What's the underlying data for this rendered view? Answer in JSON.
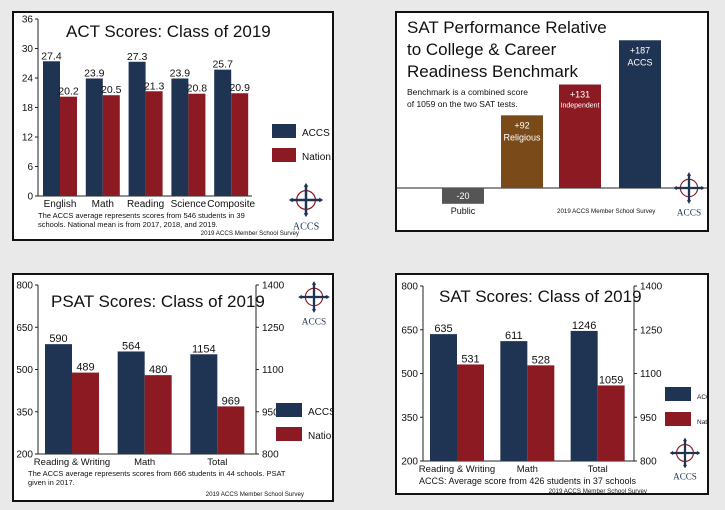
{
  "colors": {
    "accs": "#1f3352",
    "nation": "#8c1a22",
    "religious": "#7a4a19",
    "public": "#555555"
  },
  "chart_data": [
    {
      "id": "act",
      "type": "bar",
      "title": "ACT Scores: Class of 2019",
      "categories": [
        "English",
        "Math",
        "Reading",
        "Science",
        "Composite"
      ],
      "series": [
        {
          "name": "ACCS",
          "values": [
            27.4,
            23.9,
            27.3,
            23.9,
            25.7
          ],
          "labels": [
            "27.4",
            "23.9",
            "27.3",
            "23.9",
            "25.7"
          ]
        },
        {
          "name": "Nation",
          "values": [
            20.2,
            20.5,
            21.3,
            20.8,
            20.9
          ],
          "labels": [
            "20.2",
            "20.5",
            "21.3",
            "20.8",
            "20.9"
          ]
        }
      ],
      "ylim": [
        0,
        36
      ],
      "yticks": [
        "0",
        "6",
        "12",
        "18",
        "24",
        "30",
        "36"
      ],
      "note": "The ACCS average represents scores from 546 students in 39 schools. National mean is from 2017, 2018, and 2019.",
      "source": "2019 ACCS Member School Survey",
      "legend": "right"
    },
    {
      "id": "sat_benchmark",
      "type": "bar",
      "title_lines": [
        "SAT Performance Relative",
        "to College & Career",
        "Readiness Benchmark"
      ],
      "note_lines": [
        "Benchmark is a combined score",
        "of 1059 on the two SAT tests."
      ],
      "categories": [
        "Public",
        "Religious",
        "Independent",
        "ACCS"
      ],
      "values": [
        -20,
        92,
        131,
        187
      ],
      "value_labels": [
        "-20",
        "+92",
        "+131",
        "+187"
      ],
      "ylim": [
        -40,
        195
      ],
      "source": "2019 ACCS Member School Survey"
    },
    {
      "id": "psat",
      "type": "bar",
      "title": "PSAT Scores: Class of 2019",
      "categories": [
        "Reading & Writing",
        "Math",
        "Total"
      ],
      "series": [
        {
          "name": "ACCS",
          "values": [
            590,
            564,
            1154
          ],
          "labels": [
            "590",
            "564",
            "1154"
          ]
        },
        {
          "name": "Nation",
          "values": [
            489,
            480,
            969
          ],
          "labels": [
            "489",
            "480",
            "969"
          ]
        }
      ],
      "ylim_left": [
        200,
        800
      ],
      "yticks_left": [
        "200",
        "350",
        "500",
        "650",
        "800"
      ],
      "ylim_right": [
        800,
        1400
      ],
      "yticks_right": [
        "800",
        "950",
        "1100",
        "1250",
        "1400"
      ],
      "note": "The ACCS average represents scores from 666 students in 44 schools. PSAT given in 2017.",
      "source": "2019 ACCS Member School Survey",
      "legend": "right"
    },
    {
      "id": "sat",
      "type": "bar",
      "title": "SAT Scores: Class of 2019",
      "categories": [
        "Reading & Writing",
        "Math",
        "Total"
      ],
      "series": [
        {
          "name": "ACCS",
          "values": [
            635,
            611,
            1246
          ],
          "labels": [
            "635",
            "611",
            "1246"
          ]
        },
        {
          "name": "Nation",
          "values": [
            531,
            528,
            1059
          ],
          "labels": [
            "531",
            "528",
            "1059"
          ]
        }
      ],
      "ylim_left": [
        200,
        800
      ],
      "yticks_left": [
        "200",
        "350",
        "500",
        "650",
        "800"
      ],
      "ylim_right": [
        800,
        1400
      ],
      "yticks_right": [
        "800",
        "950",
        "1100",
        "1250",
        "1400"
      ],
      "note": "ACCS: Average score from 426 students in 37 schools",
      "source": "2019 ACCS Member School Survey",
      "legend": "right"
    }
  ],
  "logo": {
    "text": "ACCS"
  }
}
